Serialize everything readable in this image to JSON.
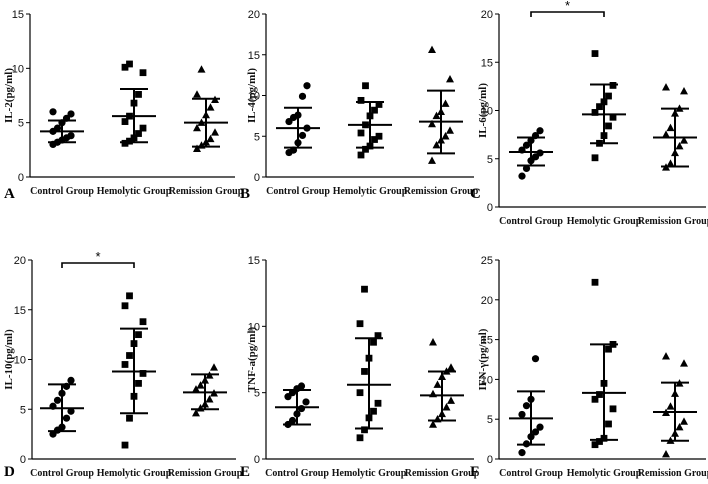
{
  "chart_data": [
    {
      "type": "scatter",
      "panel_label": "A",
      "ylabel": "IL-2(pg/ml)",
      "ylim": [
        0,
        15
      ],
      "yticks": [
        "0",
        "5",
        "10",
        "15"
      ],
      "ytick_values": [
        0,
        5,
        10,
        15
      ],
      "categories": [
        "Control Group",
        "Hemolytic Group",
        "Remission Group"
      ],
      "series": [
        {
          "name": "Control Group",
          "marker": "circle",
          "mean": 4.2,
          "sd_low": 3.2,
          "sd_high": 5.2,
          "values": [
            3.0,
            3.2,
            3.4,
            3.6,
            3.8,
            4.2,
            4.5,
            5.0,
            5.4,
            5.8,
            6.0
          ]
        },
        {
          "name": "Hemolytic Group",
          "marker": "square",
          "mean": 5.6,
          "sd_low": 3.2,
          "sd_high": 8.1,
          "values": [
            3.1,
            3.3,
            3.6,
            4.0,
            4.5,
            5.1,
            5.6,
            6.8,
            7.6,
            9.6,
            10.1,
            10.4
          ]
        },
        {
          "name": "Remission Group",
          "marker": "triangle",
          "mean": 5.0,
          "sd_low": 2.8,
          "sd_high": 7.2,
          "values": [
            2.6,
            2.9,
            3.2,
            3.5,
            4.1,
            4.5,
            5.0,
            5.7,
            6.4,
            7.1,
            7.6,
            9.9
          ]
        }
      ]
    },
    {
      "type": "scatter",
      "panel_label": "B",
      "ylabel": "IL-4(pg/ml)",
      "ylim": [
        0,
        20
      ],
      "yticks": [
        "0",
        "5",
        "10",
        "15",
        "20"
      ],
      "ytick_values": [
        0,
        5,
        10,
        15,
        20
      ],
      "categories": [
        "Control Group",
        "Hemolytic Group",
        "Remission Group"
      ],
      "series": [
        {
          "name": "Control Group",
          "marker": "circle",
          "mean": 6.0,
          "sd_low": 3.6,
          "sd_high": 8.5,
          "values": [
            3.0,
            3.3,
            4.2,
            5.1,
            6.0,
            6.8,
            7.3,
            7.6,
            9.9,
            11.2
          ]
        },
        {
          "name": "Hemolytic Group",
          "marker": "square",
          "mean": 6.4,
          "sd_low": 3.6,
          "sd_high": 9.2,
          "values": [
            2.7,
            3.4,
            3.8,
            4.6,
            5.0,
            5.4,
            6.4,
            7.5,
            8.2,
            8.9,
            9.4,
            11.2
          ]
        },
        {
          "name": "Remission Group",
          "marker": "triangle",
          "mean": 6.8,
          "sd_low": 2.9,
          "sd_high": 10.6,
          "values": [
            2.0,
            3.9,
            4.5,
            5.0,
            5.7,
            6.5,
            7.5,
            8.0,
            9.0,
            12.0,
            15.6
          ]
        }
      ]
    },
    {
      "type": "scatter",
      "panel_label": "C",
      "ylabel": "IL-6(pg/ml)",
      "ylim": [
        0,
        20
      ],
      "yticks": [
        "0",
        "5",
        "10",
        "15",
        "20"
      ],
      "ytick_values": [
        0,
        5,
        10,
        15,
        20
      ],
      "categories": [
        "Control Group",
        "Hemolytic Group",
        "Remission Group"
      ],
      "significance": {
        "from": 0,
        "to": 1,
        "label": "*"
      },
      "series": [
        {
          "name": "Control Group",
          "marker": "circle",
          "mean": 5.7,
          "sd_low": 4.3,
          "sd_high": 7.2,
          "values": [
            3.2,
            4.0,
            4.8,
            5.2,
            5.6,
            5.9,
            6.4,
            6.9,
            7.4,
            7.9
          ]
        },
        {
          "name": "Hemolytic Group",
          "marker": "square",
          "mean": 9.6,
          "sd_low": 6.6,
          "sd_high": 12.7,
          "values": [
            5.1,
            6.6,
            7.4,
            8.4,
            9.3,
            9.8,
            10.4,
            10.9,
            11.5,
            12.6,
            15.9
          ]
        },
        {
          "name": "Remission Group",
          "marker": "triangle",
          "mean": 7.2,
          "sd_low": 4.2,
          "sd_high": 10.2,
          "values": [
            4.1,
            4.5,
            5.6,
            6.3,
            6.9,
            7.5,
            8.2,
            9.7,
            10.2,
            12.0,
            12.4
          ]
        }
      ]
    },
    {
      "type": "scatter",
      "panel_label": "D",
      "ylabel": "IL-10(pg/ml)",
      "ylim": [
        0,
        20
      ],
      "yticks": [
        "0",
        "5",
        "10",
        "15",
        "20"
      ],
      "ytick_values": [
        0,
        5,
        10,
        15,
        20
      ],
      "categories": [
        "Control Group",
        "Hemolytic Group",
        "Remission Group"
      ],
      "significance": {
        "from": 0,
        "to": 1,
        "label": "*"
      },
      "series": [
        {
          "name": "Control Group",
          "marker": "circle",
          "mean": 5.1,
          "sd_low": 2.8,
          "sd_high": 7.5,
          "values": [
            2.5,
            2.9,
            3.2,
            4.1,
            4.8,
            5.3,
            5.9,
            6.6,
            7.3,
            7.9
          ]
        },
        {
          "name": "Hemolytic Group",
          "marker": "square",
          "mean": 8.8,
          "sd_low": 4.6,
          "sd_high": 13.1,
          "values": [
            1.4,
            4.1,
            6.3,
            7.6,
            8.6,
            9.5,
            10.4,
            11.6,
            12.5,
            13.8,
            15.4,
            16.4
          ]
        },
        {
          "name": "Remission Group",
          "marker": "triangle",
          "mean": 6.7,
          "sd_low": 5.0,
          "sd_high": 8.5,
          "values": [
            4.6,
            5.1,
            5.5,
            6.0,
            6.6,
            7.0,
            7.4,
            7.9,
            8.4,
            9.2
          ]
        }
      ]
    },
    {
      "type": "scatter",
      "panel_label": "E",
      "ylabel": "TNF-a(pg/ml)",
      "ylim": [
        0,
        15
      ],
      "yticks": [
        "0",
        "5",
        "10",
        "15"
      ],
      "ytick_values": [
        0,
        5,
        10,
        15
      ],
      "categories": [
        "Control Group",
        "Hemolytic Group",
        "Remission Group"
      ],
      "series": [
        {
          "name": "Control Group",
          "marker": "circle",
          "mean": 3.9,
          "sd_low": 2.6,
          "sd_high": 5.2,
          "values": [
            2.6,
            2.9,
            3.4,
            3.8,
            4.3,
            4.7,
            5.0,
            5.3,
            5.5
          ]
        },
        {
          "name": "Hemolytic Group",
          "marker": "square",
          "mean": 5.6,
          "sd_low": 2.3,
          "sd_high": 9.1,
          "values": [
            1.6,
            2.2,
            3.1,
            3.6,
            4.2,
            5.0,
            6.6,
            7.6,
            8.8,
            9.3,
            10.2,
            12.8
          ]
        },
        {
          "name": "Remission Group",
          "marker": "triangle",
          "mean": 4.8,
          "sd_low": 2.9,
          "sd_high": 6.6,
          "values": [
            2.6,
            3.0,
            3.4,
            3.9,
            4.4,
            4.9,
            5.6,
            6.2,
            6.6,
            6.9,
            8.8
          ]
        }
      ]
    },
    {
      "type": "scatter",
      "panel_label": "F",
      "ylabel": "IFN-γ(pg/ml)",
      "ylim": [
        0,
        25
      ],
      "yticks": [
        "0",
        "5",
        "10",
        "15",
        "20",
        "25"
      ],
      "ytick_values": [
        0,
        5,
        10,
        15,
        20,
        25
      ],
      "categories": [
        "Control Group",
        "Hemolytic Group",
        "Remission Group"
      ],
      "series": [
        {
          "name": "Control Group",
          "marker": "circle",
          "mean": 5.1,
          "sd_low": 1.8,
          "sd_high": 8.5,
          "values": [
            0.8,
            1.9,
            2.8,
            3.4,
            4.0,
            5.6,
            6.7,
            7.5,
            12.6
          ]
        },
        {
          "name": "Hemolytic Group",
          "marker": "square",
          "mean": 8.3,
          "sd_low": 2.4,
          "sd_high": 14.4,
          "values": [
            1.8,
            2.2,
            2.6,
            4.4,
            6.3,
            7.5,
            8.1,
            9.5,
            13.8,
            14.4,
            22.2
          ]
        },
        {
          "name": "Remission Group",
          "marker": "triangle",
          "mean": 5.9,
          "sd_low": 2.3,
          "sd_high": 9.6,
          "values": [
            0.6,
            2.3,
            3.2,
            4.0,
            4.7,
            5.8,
            6.6,
            8.2,
            9.5,
            12.0,
            12.9
          ]
        }
      ]
    }
  ]
}
